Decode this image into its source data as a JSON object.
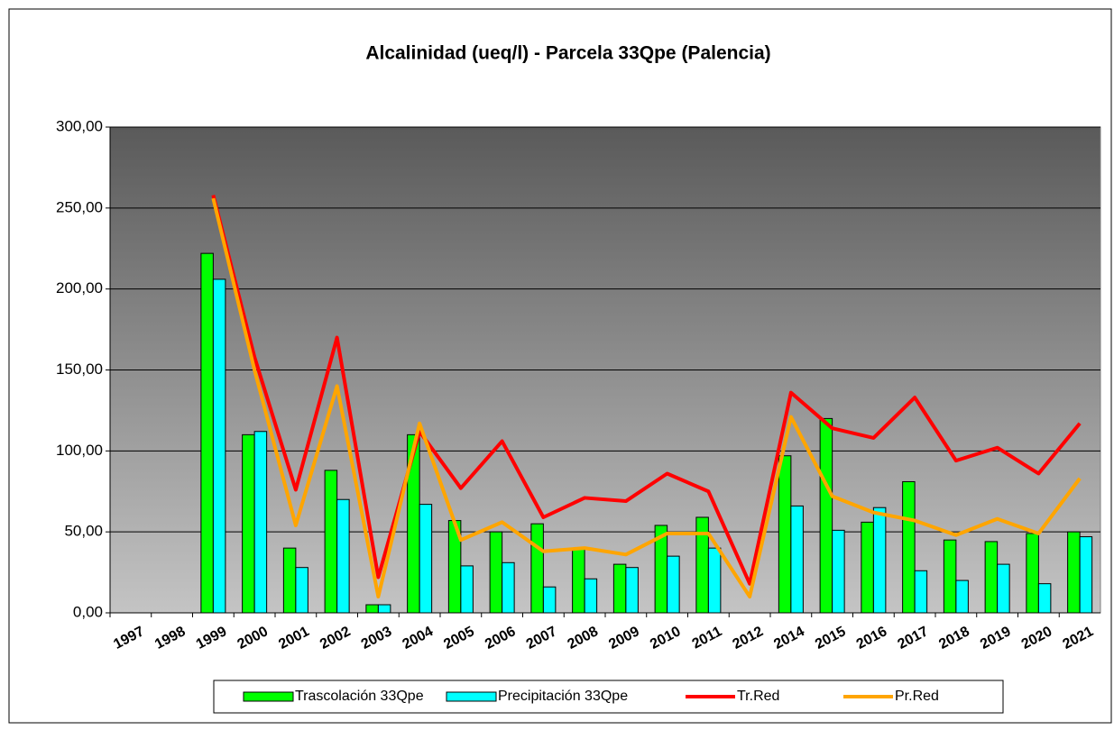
{
  "chart_data": {
    "type": "bar_line",
    "title": "Alcalinidad (ueq/l) - Parcela 33Qpe (Palencia)",
    "categories": [
      "1997",
      "1998",
      "1999",
      "2000",
      "2001",
      "2002",
      "2003",
      "2004",
      "2005",
      "2006",
      "2007",
      "2008",
      "2009",
      "2010",
      "2011",
      "2012",
      "2014",
      "2015",
      "2016",
      "2017",
      "2018",
      "2019",
      "2020",
      "2021"
    ],
    "series": [
      {
        "name": "Trascolación  33Qpe",
        "type": "bar",
        "color": "#00ff00",
        "values": [
          null,
          null,
          222,
          110,
          40,
          88,
          5,
          110,
          57,
          50,
          55,
          40,
          30,
          54,
          59,
          null,
          97,
          120,
          56,
          81,
          45,
          44,
          49,
          50
        ]
      },
      {
        "name": "Precipitación 33Qpe",
        "type": "bar",
        "color": "#00ffff",
        "values": [
          null,
          null,
          206,
          112,
          28,
          70,
          5,
          67,
          29,
          31,
          16,
          21,
          28,
          35,
          40,
          null,
          66,
          51,
          65,
          26,
          20,
          30,
          18,
          47
        ]
      },
      {
        "name": "Tr.Red",
        "type": "line",
        "color": "#ff0000",
        "values": [
          null,
          null,
          258,
          158,
          76,
          170,
          22,
          112,
          77,
          106,
          59,
          71,
          69,
          86,
          75,
          18,
          136,
          114,
          108,
          133,
          94,
          102,
          86,
          117
        ]
      },
      {
        "name": "Pr.Red",
        "type": "line",
        "color": "#ffa500",
        "values": [
          null,
          null,
          256,
          150,
          54,
          140,
          10,
          117,
          45,
          56,
          38,
          40,
          36,
          49,
          49,
          10,
          121,
          72,
          62,
          57,
          48,
          58,
          49,
          83
        ]
      }
    ],
    "ylim": [
      0,
      300
    ],
    "yticks": [
      {
        "value": 0,
        "label": "0,00"
      },
      {
        "value": 50,
        "label": "50,00"
      },
      {
        "value": 100,
        "label": "100,00"
      },
      {
        "value": 150,
        "label": "150,00"
      },
      {
        "value": 200,
        "label": "200,00"
      },
      {
        "value": 250,
        "label": "250,00"
      },
      {
        "value": 300,
        "label": "300,00"
      }
    ],
    "grid": true,
    "legend": "bottom"
  }
}
